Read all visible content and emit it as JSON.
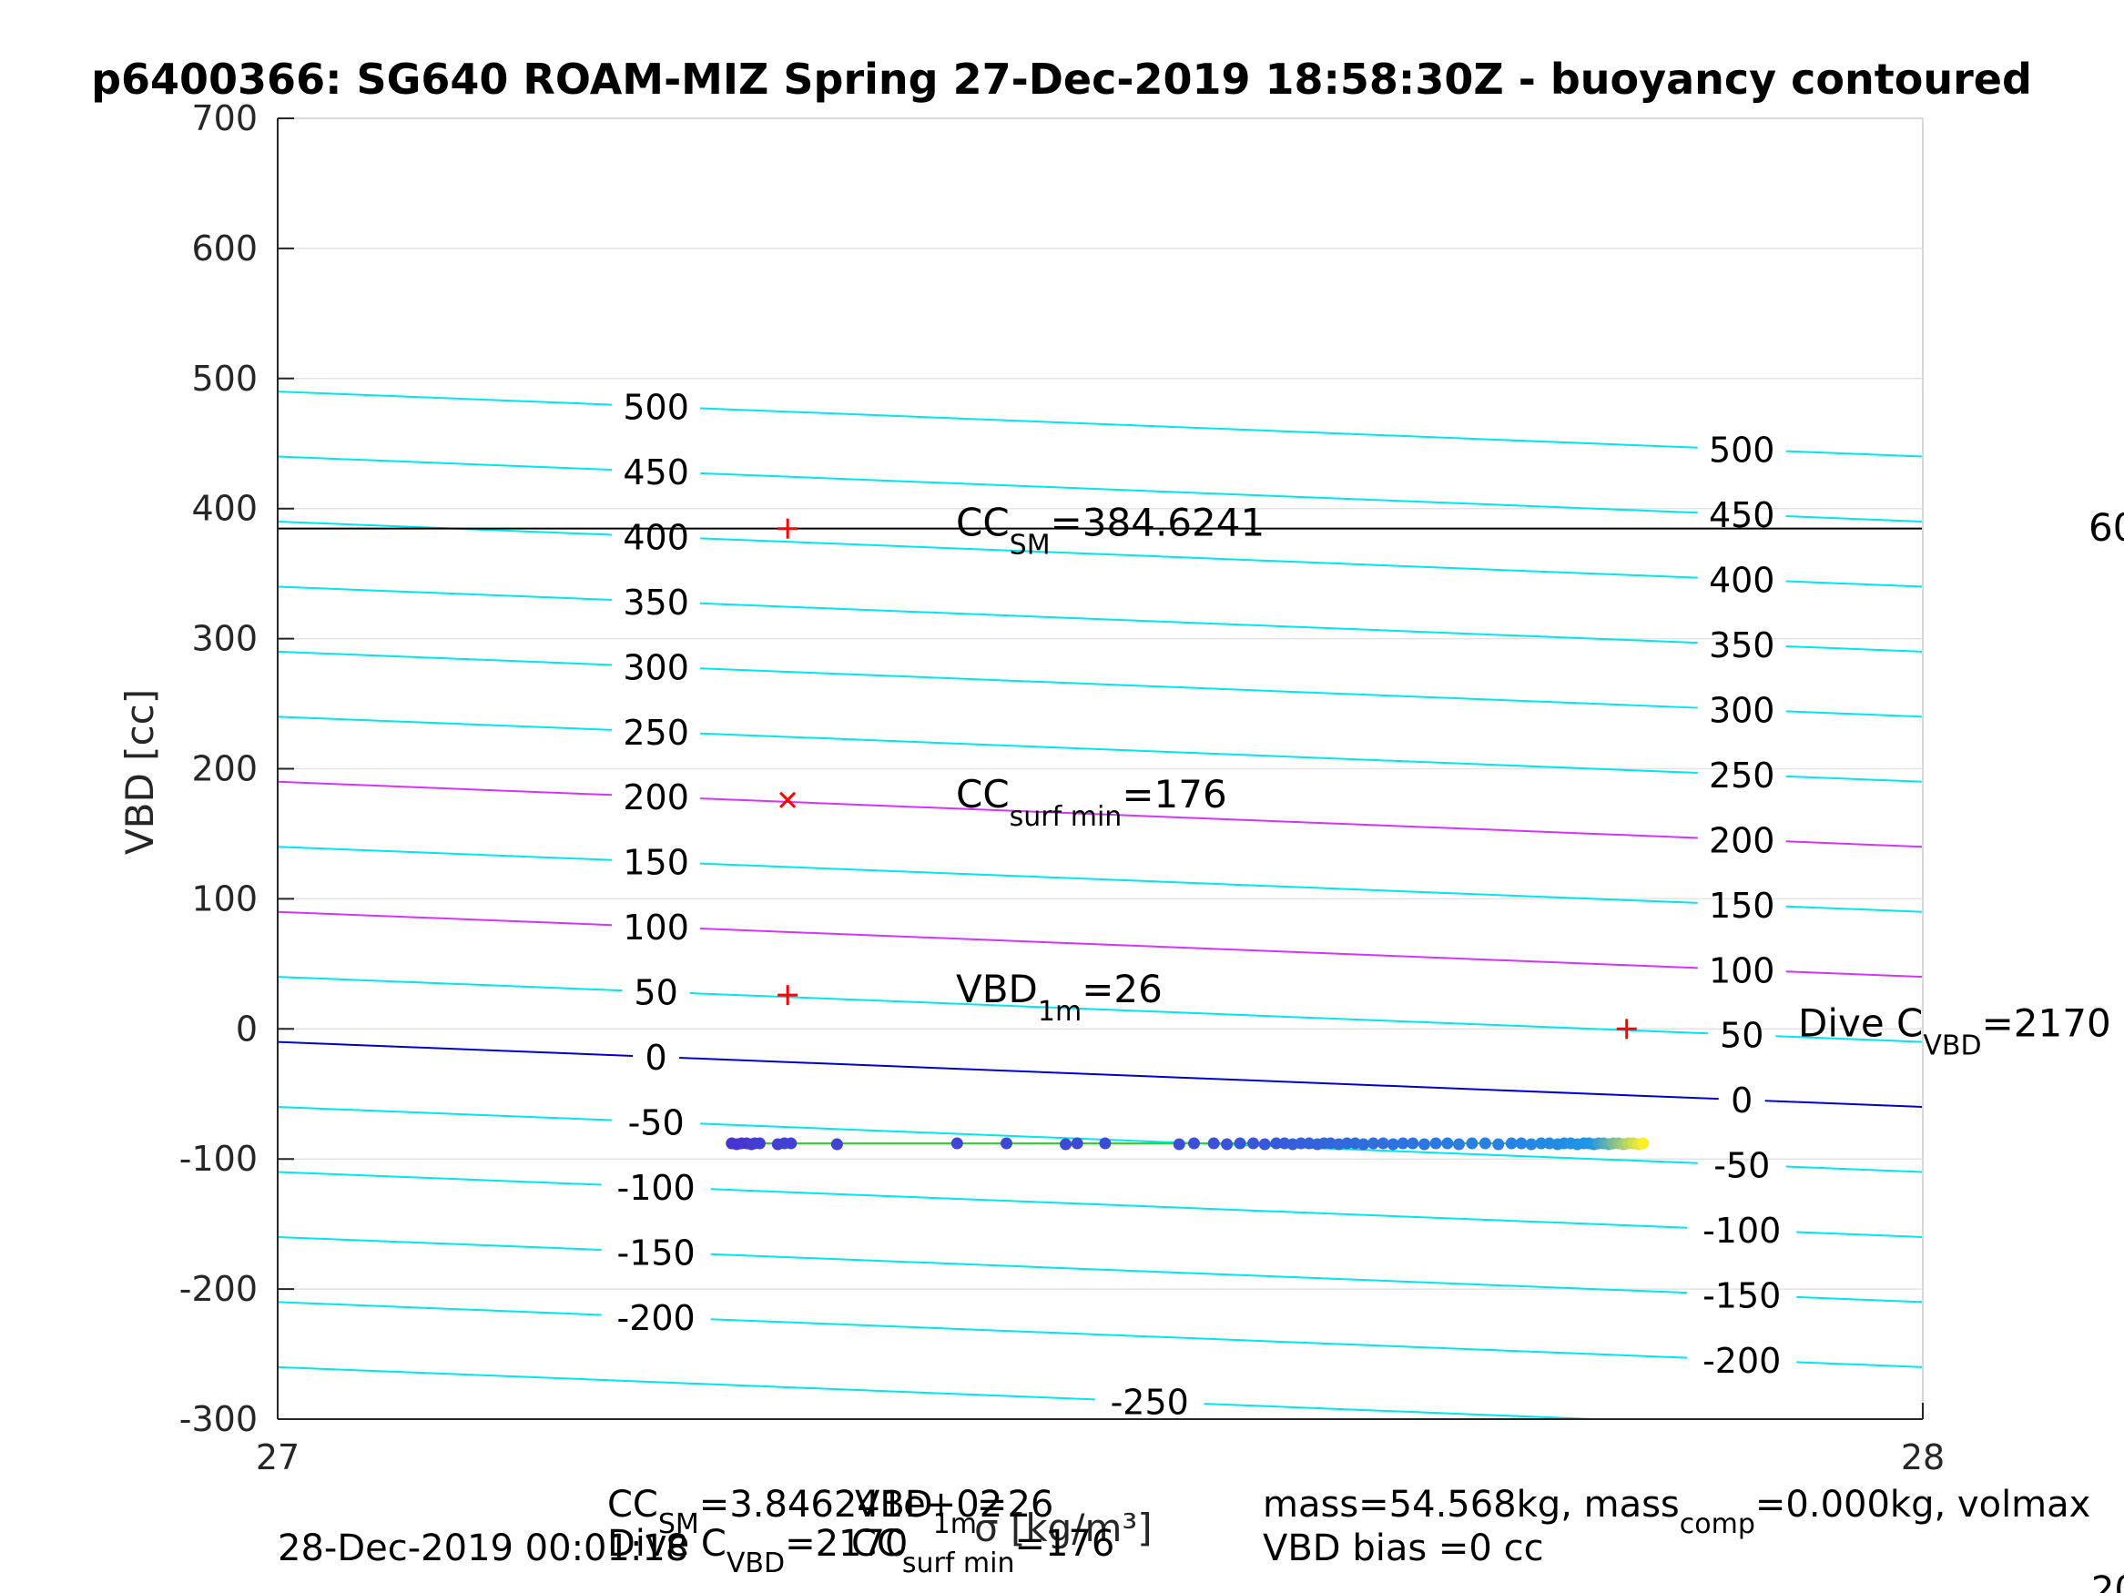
{
  "chart_data": {
    "type": "scatter",
    "title": "p6400366: SG640 ROAM-MIZ Spring 27-Dec-2019 18:58:30Z - buoyancy contoured",
    "xlabel": "σ [kg/m³]",
    "ylabel": "VBD [cc]",
    "xlim": [
      27,
      28
    ],
    "ylim": [
      -300,
      700
    ],
    "x_ticks": [
      "27",
      "28"
    ],
    "y_ticks": [
      "-300",
      "-200",
      "-100",
      "0",
      "100",
      "200",
      "300",
      "400",
      "500",
      "600",
      "700"
    ],
    "grid": true,
    "contours": {
      "slope_per_sigma": -50,
      "series": [
        {
          "value": 500,
          "y_at_27": 490,
          "color": "#00e5ee",
          "labels": [
            "500",
            "500"
          ]
        },
        {
          "value": 450,
          "y_at_27": 440,
          "color": "#00e5ee",
          "labels": [
            "450",
            "450"
          ]
        },
        {
          "value": 400,
          "y_at_27": 390,
          "color": "#00e5ee",
          "labels": [
            "400",
            "400"
          ]
        },
        {
          "value": 350,
          "y_at_27": 340,
          "color": "#00e5ee",
          "labels": [
            "350",
            "350"
          ]
        },
        {
          "value": 300,
          "y_at_27": 290,
          "color": "#00e5ee",
          "labels": [
            "300",
            "300"
          ]
        },
        {
          "value": 250,
          "y_at_27": 240,
          "color": "#00e5ee",
          "labels": [
            "250",
            "250"
          ]
        },
        {
          "value": 200,
          "y_at_27": 190,
          "color": "#d633ff",
          "labels": [
            "200",
            "200"
          ]
        },
        {
          "value": 150,
          "y_at_27": 140,
          "color": "#00e5ee",
          "labels": [
            "150",
            "150"
          ]
        },
        {
          "value": 100,
          "y_at_27": 90,
          "color": "#d633ff",
          "labels": [
            "100",
            "100"
          ]
        },
        {
          "value": 50,
          "y_at_27": 40,
          "color": "#00e5ee",
          "labels": [
            "50",
            "50"
          ]
        },
        {
          "value": 0,
          "y_at_27": -10,
          "color": "#0000cc",
          "labels": [
            "0",
            "0"
          ]
        },
        {
          "value": -50,
          "y_at_27": -60,
          "color": "#00e5ee",
          "labels": [
            "-50",
            "-50"
          ]
        },
        {
          "value": -100,
          "y_at_27": -110,
          "color": "#00e5ee",
          "labels": [
            "-100",
            "-100"
          ]
        },
        {
          "value": -150,
          "y_at_27": -160,
          "color": "#00e5ee",
          "labels": [
            "-150",
            "-150"
          ]
        },
        {
          "value": -200,
          "y_at_27": -210,
          "color": "#00e5ee",
          "labels": [
            "-200",
            "-200"
          ]
        },
        {
          "value": -250,
          "y_at_27": -260,
          "color": "#00e5ee",
          "labels": [
            "-250"
          ]
        }
      ]
    },
    "hline": {
      "y": 384.6241,
      "color": "#000000"
    },
    "markers": [
      {
        "x": 27.31,
        "y": 384.6,
        "symbol": "+",
        "color": "#ff0000",
        "label_main": "CC",
        "label_sub": "SM",
        "label_tail": "=384.6241"
      },
      {
        "x": 27.31,
        "y": 176,
        "symbol": "x",
        "color": "#ff0000",
        "label_main": "CC",
        "label_sub": "surf min",
        "label_tail": "=176"
      },
      {
        "x": 27.31,
        "y": 26,
        "symbol": "+",
        "color": "#ff0000",
        "label_main": "VBD",
        "label_sub": "1m",
        "label_tail": "=26"
      },
      {
        "x": 27.82,
        "y": 0,
        "symbol": "+",
        "color": "#ff0000",
        "label_main": "Dive C",
        "label_sub": "VBD",
        "label_tail": "=2170"
      }
    ],
    "right_edge_text": "60",
    "scatter": {
      "y": -88,
      "x": [
        27.276,
        27.279,
        27.282,
        27.285,
        27.288,
        27.29,
        27.293,
        27.304,
        27.308,
        27.312,
        27.34,
        27.413,
        27.443,
        27.479,
        27.486,
        27.503,
        27.548,
        27.557,
        27.569,
        27.577,
        27.585,
        27.593,
        27.6,
        27.607,
        27.612,
        27.617,
        27.622,
        27.627,
        27.632,
        27.636,
        27.64,
        27.645,
        27.65,
        27.655,
        27.66,
        27.666,
        27.672,
        27.678,
        27.684,
        27.69,
        27.697,
        27.704,
        27.711,
        27.718,
        27.726,
        27.734,
        27.742,
        27.75,
        27.756,
        27.762,
        27.768,
        27.773,
        27.778,
        27.782,
        27.786,
        27.79,
        27.794,
        27.797,
        27.8,
        27.803,
        27.806,
        27.809,
        27.812,
        27.815,
        27.818,
        27.821,
        27.824,
        27.827,
        27.83
      ],
      "line_color": "#22dd22"
    }
  },
  "footer": {
    "date": "28-Dec-2019 00:01:18",
    "cc_sm_main": "CC",
    "cc_sm_sub": "SM",
    "cc_sm_tail": "=3.846241e+02",
    "vbd1m_main": "VBD",
    "vbd1m_sub": "1m",
    "vbd1m_tail": "=26",
    "divec_main": "Dive C",
    "divec_sub": "VBD",
    "divec_tail": "=2170",
    "ccsurf_main": "CC",
    "ccsurf_sub": "surf min",
    "ccsurf_tail": "=176",
    "mass_main": "mass=54.568kg, mass",
    "mass_sub": "comp",
    "mass_tail": "=0.000kg, volmax",
    "vbd_bias": "VBD bias =0 cc",
    "corner_text": "20"
  }
}
